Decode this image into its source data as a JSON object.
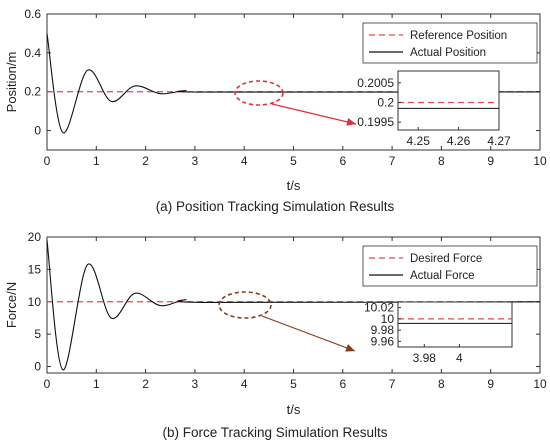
{
  "chart_data": [
    {
      "type": "line",
      "caption": "(a) Position Tracking Simulation Results",
      "xlabel": "t/s",
      "ylabel": "Position/m",
      "xlim": [
        0,
        10
      ],
      "ylim": [
        -0.1,
        0.6
      ],
      "xticks": [
        0,
        1,
        2,
        3,
        4,
        5,
        6,
        7,
        8,
        9,
        10
      ],
      "yticks": [
        0,
        0.2,
        0.4,
        0.6
      ],
      "ytick_labels": [
        "0",
        "0.2",
        "0.4",
        "0.6"
      ],
      "grid": false,
      "legend_position": "top-right",
      "series": [
        {
          "name": "Reference Position",
          "style": "dashed",
          "color": "#e8474c",
          "x": [
            0,
            10
          ],
          "y": [
            0.2,
            0.2
          ]
        },
        {
          "name": "Actual Position",
          "style": "solid",
          "color": "#111111",
          "x": [
            0,
            0.32,
            0.82,
            1.3,
            1.78,
            2.3,
            2.8,
            3.3,
            10
          ],
          "y": [
            0.5,
            -0.01,
            0.31,
            0.15,
            0.23,
            0.19,
            0.205,
            0.198,
            0.199
          ]
        }
      ],
      "inset": {
        "xlim": [
          4.245,
          4.27
        ],
        "ylim": [
          0.1993,
          0.2008
        ],
        "xticks": [
          4.25,
          4.26,
          4.27
        ],
        "xtick_labels": [
          "4.25",
          "4.26",
          "4.27"
        ],
        "yticks": [
          0.2005,
          0.2,
          0.1995
        ],
        "ytick_labels": [
          "0.2005",
          "0.2",
          "0.1995"
        ],
        "reference_value": 0.2,
        "actual_value": 0.19985
      }
    },
    {
      "type": "line",
      "caption": "(b) Force Tracking Simulation Results",
      "xlabel": "t/s",
      "ylabel": "Force/N",
      "xlim": [
        0,
        10
      ],
      "ylim": [
        -1,
        20
      ],
      "xticks": [
        0,
        1,
        2,
        3,
        4,
        5,
        6,
        7,
        8,
        9,
        10
      ],
      "yticks": [
        0,
        5,
        10,
        15,
        20
      ],
      "ytick_labels": [
        "0",
        "5",
        "10",
        "15",
        "20"
      ],
      "grid": false,
      "legend_position": "top-right",
      "series": [
        {
          "name": "Desired Force",
          "style": "dashed",
          "color": "#e8474c",
          "x": [
            0,
            10
          ],
          "y": [
            10,
            10
          ]
        },
        {
          "name": "Actual Force",
          "style": "solid",
          "color": "#111111",
          "x": [
            0,
            0.32,
            0.82,
            1.3,
            1.78,
            2.3,
            2.8,
            3.3,
            10
          ],
          "y": [
            19.5,
            -0.5,
            15.7,
            7.5,
            11.3,
            9.4,
            10.3,
            9.9,
            10.0
          ]
        }
      ],
      "inset": {
        "xlim": [
          3.965,
          4.03
        ],
        "ylim": [
          9.95,
          10.03
        ],
        "xticks": [
          3.98,
          4
        ],
        "xtick_labels": [
          "3.98",
          "4"
        ],
        "yticks": [
          10.02,
          10,
          9.98,
          9.96
        ],
        "ytick_labels": [
          "10.02",
          "10",
          "9.98",
          "9.96"
        ],
        "reference_value": 10.0,
        "actual_value": 9.992
      }
    }
  ]
}
